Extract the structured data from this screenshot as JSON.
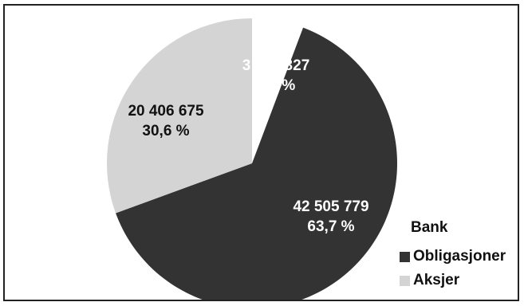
{
  "chart_data": {
    "type": "pie",
    "legend_title": "Bank",
    "legend_position": "bottom-right",
    "slices": [
      {
        "name": "",
        "value": 3821327,
        "label_value": "3 821 327",
        "label_pct": "5,7 %",
        "color": "#ffffff",
        "label_color": "#ffffff"
      },
      {
        "name": "Obligasjoner",
        "value": 42505779,
        "label_value": "42 505 779",
        "label_pct": "63,7 %",
        "color": "#333333",
        "label_color": "#ffffff"
      },
      {
        "name": "Aksjer",
        "value": 20406675,
        "label_value": "20 406 675",
        "label_pct": "30,6 %",
        "color": "#d4d4d4",
        "label_color": "#111111"
      }
    ],
    "legend": [
      {
        "label": "Obligasjoner",
        "color": "#333333"
      },
      {
        "label": "Aksjer",
        "color": "#d4d4d4"
      }
    ]
  }
}
